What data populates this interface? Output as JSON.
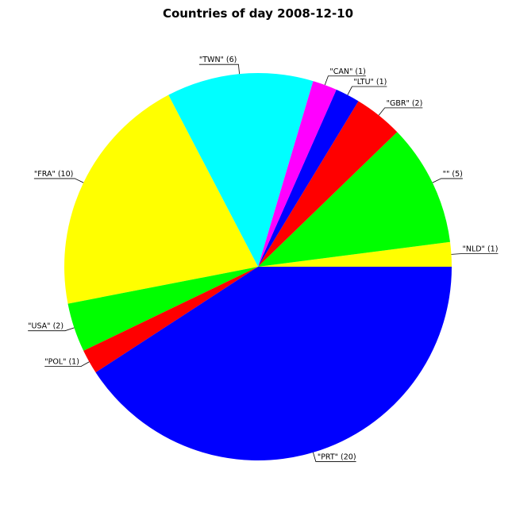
{
  "chart_data": {
    "type": "pie",
    "title": "Countries of day 2008-12-10",
    "start_angle_deg": 0,
    "direction": "counterclockwise",
    "slices": [
      {
        "label": "\"NLD\" (1)",
        "name": "NLD",
        "value": 1,
        "color": "#ffff00"
      },
      {
        "label": "\"\" (5)",
        "name": "",
        "value": 5,
        "color": "#00ff00"
      },
      {
        "label": "\"GBR\" (2)",
        "name": "GBR",
        "value": 2,
        "color": "#ff0000"
      },
      {
        "label": "\"LTU\" (1)",
        "name": "LTU",
        "value": 1,
        "color": "#0000ff"
      },
      {
        "label": "\"CAN\" (1)",
        "name": "CAN",
        "value": 1,
        "color": "#ff00ff"
      },
      {
        "label": "\"TWN\" (6)",
        "name": "TWN",
        "value": 6,
        "color": "#00ffff"
      },
      {
        "label": "\"FRA\" (10)",
        "name": "FRA",
        "value": 10,
        "color": "#ffff00"
      },
      {
        "label": "\"USA\" (2)",
        "name": "USA",
        "value": 2,
        "color": "#00ff00"
      },
      {
        "label": "\"POL\" (1)",
        "name": "POL",
        "value": 1,
        "color": "#ff0000"
      },
      {
        "label": "\"PRT\" (20)",
        "name": "PRT",
        "value": 20,
        "color": "#0000ff"
      }
    ]
  }
}
